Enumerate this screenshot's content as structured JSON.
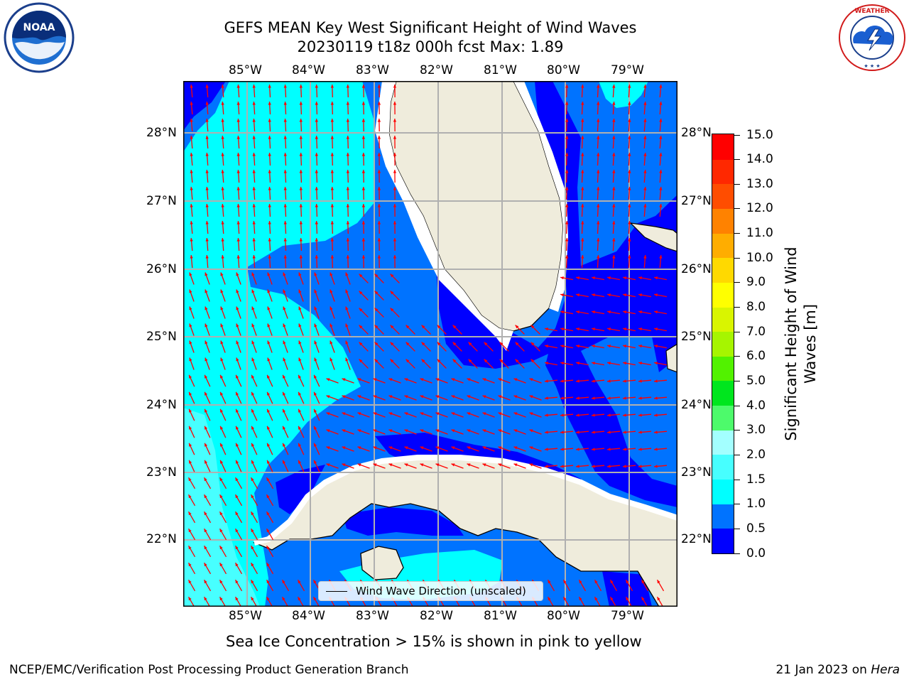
{
  "title": {
    "line1": "GEFS MEAN Key West Significant Height of Wind Waves",
    "line2": "20230119 t18z 000h fcst   Max: 1.89"
  },
  "map": {
    "type": "contour-map",
    "region": "Florida Keys / Cuba",
    "grid": true,
    "lon_labels": [
      "85°W",
      "84°W",
      "83°W",
      "82°W",
      "81°W",
      "80°W",
      "79°W"
    ],
    "lat_labels": [
      "28°N",
      "27°N",
      "26°N",
      "25°N",
      "24°N",
      "23°N",
      "22°N"
    ],
    "vectors": "Wind wave direction arrows (red)"
  },
  "legend": {
    "label": "Wind Wave Direction (unscaled)"
  },
  "colorbar": {
    "title_line1": "Significant Height of Wind",
    "title_line2": "Waves [m]",
    "ticks": [
      "15.0",
      "14.0",
      "13.0",
      "12.0",
      "11.0",
      "10.0",
      "9.0",
      "8.0",
      "7.0",
      "6.0",
      "5.0",
      "4.0",
      "3.0",
      "2.0",
      "1.5",
      "1.0",
      "0.5",
      "0.0"
    ],
    "colors": [
      "#0000ff",
      "#0073ff",
      "#00ffff",
      "#47ffff",
      "#a3ffff",
      "#4dfa6b",
      "#00e61e",
      "#52f200",
      "#a6f500",
      "#d9f500",
      "#ffff00",
      "#ffd900",
      "#ffad00",
      "#ff8200",
      "#ff4d00",
      "#ff2800",
      "#ff0000"
    ]
  },
  "footnote": "Sea Ice Concentration > 15% is shown in pink to yellow",
  "credit_left": "NCEP/EMC/Verification Post Processing Product Generation Branch",
  "credit_right_prefix": "21 Jan 2023 on ",
  "credit_right_host": "Hera",
  "logos": {
    "noaa": {
      "icon": "noaa-logo",
      "text": "NOAA"
    },
    "nws": {
      "icon": "nws-logo",
      "text": "NATIONAL WEATHER SERVICE"
    }
  }
}
